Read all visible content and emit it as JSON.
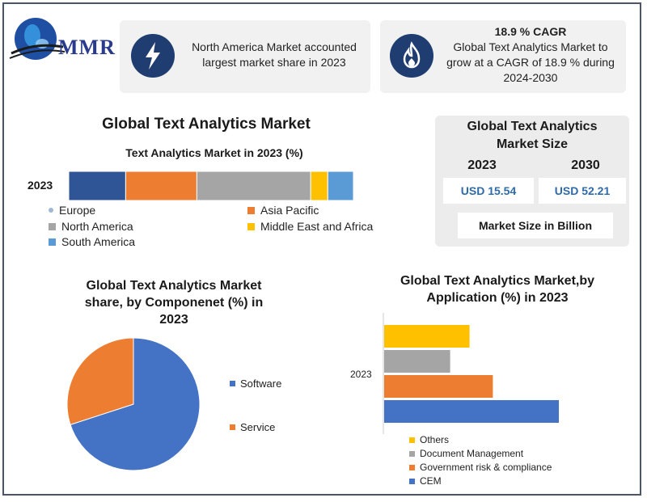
{
  "logo": {
    "text": "MMR"
  },
  "info_boxes": [
    {
      "icon": "lightning-icon",
      "text_line1": "North America Market accounted",
      "text_line2": "largest market share in 2023"
    },
    {
      "icon": "flame-icon",
      "title": "18.9 % CAGR",
      "text_line1": "Global Text Analytics Market to",
      "text_line2": "grow at a CAGR of 18.9 % during",
      "text_line3": "2024-2030"
    }
  ],
  "main_title": "Global Text Analytics Market",
  "market_size": {
    "title_line1": "Global Text Analytics",
    "title_line2": "Market Size",
    "year1": "2023",
    "year2": "2030",
    "value1": "USD 15.54",
    "value2": "USD 52.21",
    "footer": "Market Size in Billion"
  },
  "colors": {
    "europe": "#2f5597",
    "asia_pacific": "#ed7d31",
    "north_america": "#a5a5a5",
    "middle_east_africa": "#ffc000",
    "south_america": "#5b9bd5",
    "software": "#4472c4",
    "service": "#ed7d31"
  },
  "chart_data": [
    {
      "type": "bar",
      "orientation": "horizontal-stacked",
      "title": "Text Analytics Market in 2023 (%)",
      "categories": [
        "2023"
      ],
      "series": [
        {
          "name": "Europe",
          "values": [
            20
          ]
        },
        {
          "name": "Asia Pacific",
          "values": [
            25
          ]
        },
        {
          "name": "North America",
          "values": [
            40
          ]
        },
        {
          "name": "Middle East and Africa",
          "values": [
            6
          ]
        },
        {
          "name": "South America",
          "values": [
            9
          ]
        }
      ],
      "legend": [
        "Europe",
        "Asia Pacific",
        "North America",
        "Middle East and Africa",
        "South America"
      ],
      "legend_position": "bottom"
    },
    {
      "type": "pie",
      "title_line1": "Global Text Analytics Market",
      "title_line2": "share, by Componenet (%) in",
      "title_line3": "2023",
      "categories": [
        "Software",
        "Service"
      ],
      "values": [
        70,
        30
      ],
      "legend_position": "right"
    },
    {
      "type": "bar",
      "orientation": "horizontal",
      "title_line1": "Global Text Analytics Market,by",
      "title_line2": "Application (%) in 2023",
      "y_label": "2023",
      "series": [
        {
          "name": "Others",
          "values": [
            22
          ]
        },
        {
          "name": "Document Management",
          "values": [
            17
          ]
        },
        {
          "name": "Government risk & compliance",
          "values": [
            28
          ]
        },
        {
          "name": "CEM",
          "values": [
            45
          ]
        }
      ],
      "xlim": [
        0,
        50
      ],
      "legend_position": "bottom"
    }
  ]
}
